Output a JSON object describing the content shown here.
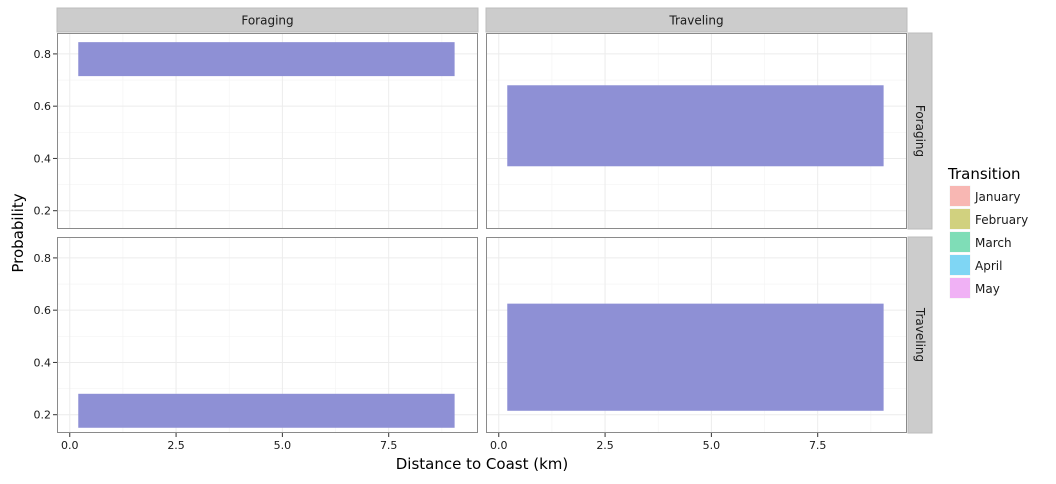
{
  "chart_data": {
    "type": "facet-range-bar",
    "xlabel": "Distance to Coast (km)",
    "ylabel": "Probability",
    "col_facets": [
      "Foraging",
      "Traveling"
    ],
    "row_facets": [
      "Foraging",
      "Traveling"
    ],
    "xlim": [
      -0.3,
      9.6
    ],
    "ylim": [
      0.13,
      0.88
    ],
    "x_ticks": [
      0,
      2.5,
      5,
      7.5
    ],
    "x_tick_labels": [
      "0.0",
      "2.5",
      "5.0",
      "7.5"
    ],
    "y_ticks": [
      0.2,
      0.4,
      0.6,
      0.8
    ],
    "y_tick_labels": [
      "0.2",
      "0.4",
      "0.6",
      "0.8"
    ],
    "grid": true,
    "legend": {
      "title": "Transition",
      "position": "right",
      "items": [
        {
          "label": "January",
          "color": "#F8B7B3"
        },
        {
          "label": "February",
          "color": "#D1D17F"
        },
        {
          "label": "March",
          "color": "#7FDDB7"
        },
        {
          "label": "April",
          "color": "#7FD6F4"
        },
        {
          "label": "May",
          "color": "#F0B1F5"
        }
      ]
    },
    "bar_color": "#8E90D5",
    "panels": [
      {
        "row": 0,
        "col": 0,
        "x0": 0.2,
        "x1": 9.05,
        "ymin": 0.715,
        "ymax": 0.845
      },
      {
        "row": 0,
        "col": 1,
        "x0": 0.2,
        "x1": 9.05,
        "ymin": 0.37,
        "ymax": 0.68
      },
      {
        "row": 1,
        "col": 0,
        "x0": 0.2,
        "x1": 9.05,
        "ymin": 0.15,
        "ymax": 0.28
      },
      {
        "row": 1,
        "col": 1,
        "x0": 0.2,
        "x1": 9.05,
        "ymin": 0.215,
        "ymax": 0.625
      }
    ]
  }
}
